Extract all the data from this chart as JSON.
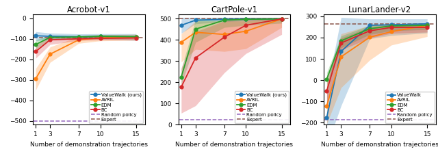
{
  "x": [
    1,
    3,
    7,
    10,
    15
  ],
  "acrobot": {
    "title": "Acrobot-v1",
    "ylim": [
      -520,
      20
    ],
    "valuewalk_mean": [
      -85,
      -88,
      -90,
      -88,
      -90
    ],
    "valuewalk_low": [
      -110,
      -102,
      -102,
      -102,
      -108
    ],
    "valuewalk_high": [
      -65,
      -72,
      -76,
      -75,
      -75
    ],
    "avril_mean": [
      -295,
      -175,
      -105,
      -95,
      -92
    ],
    "avril_low": [
      -350,
      -215,
      -122,
      -110,
      -107
    ],
    "avril_high": [
      -245,
      -140,
      -88,
      -80,
      -78
    ],
    "edm_mean": [
      -128,
      -93,
      -91,
      -88,
      -90
    ],
    "edm_low": [
      -152,
      -103,
      -96,
      -93,
      -96
    ],
    "edm_high": [
      -105,
      -82,
      -83,
      -80,
      -81
    ],
    "bc_mean": [
      -162,
      -105,
      -100,
      -98,
      -96
    ],
    "bc_low": [
      -195,
      -128,
      -108,
      -106,
      -106
    ],
    "bc_high": [
      -132,
      -85,
      -90,
      -88,
      -86
    ],
    "random_policy": -500,
    "expert": -95
  },
  "cartpole": {
    "title": "CartPole-v1",
    "ylim": [
      0,
      520
    ],
    "valuewalk_mean": [
      468,
      492,
      496,
      498,
      498
    ],
    "valuewalk_low": [
      430,
      475,
      485,
      490,
      492
    ],
    "valuewalk_high": [
      505,
      505,
      505,
      505,
      505
    ],
    "avril_mean": [
      388,
      435,
      425,
      440,
      498
    ],
    "avril_low": [
      295,
      355,
      345,
      358,
      458
    ],
    "avril_high": [
      428,
      488,
      488,
      488,
      505
    ],
    "edm_mean": [
      225,
      450,
      492,
      496,
      498
    ],
    "edm_low": [
      188,
      388,
      458,
      468,
      478
    ],
    "edm_high": [
      262,
      496,
      505,
      505,
      505
    ],
    "bc_mean": [
      178,
      315,
      412,
      468,
      498
    ],
    "bc_low": [
      55,
      90,
      245,
      335,
      425
    ],
    "bc_high": [
      268,
      438,
      488,
      505,
      505
    ],
    "random_policy": 25,
    "expert": 500
  },
  "lunarlander": {
    "title": "LunarLander-v2",
    "ylim": [
      -210,
      310
    ],
    "valuewalk_mean": [
      -175,
      135,
      258,
      260,
      265
    ],
    "valuewalk_low": [
      -310,
      -120,
      195,
      210,
      222
    ],
    "valuewalk_high": [
      -50,
      295,
      288,
      288,
      288
    ],
    "avril_mean": [
      -120,
      110,
      202,
      228,
      258
    ],
    "avril_low": [
      -205,
      -35,
      95,
      165,
      205
    ],
    "avril_high": [
      -28,
      218,
      258,
      263,
      268
    ],
    "edm_mean": [
      5,
      185,
      242,
      255,
      258
    ],
    "edm_low": [
      -28,
      152,
      215,
      232,
      238
    ],
    "edm_high": [
      36,
      208,
      258,
      265,
      268
    ],
    "bc_mean": [
      -50,
      175,
      232,
      248,
      248
    ],
    "bc_low": [
      -118,
      142,
      198,
      220,
      226
    ],
    "bc_high": [
      18,
      198,
      250,
      260,
      263
    ],
    "random_policy": -185,
    "expert": 265
  },
  "colors": {
    "valuewalk": "#1f77b4",
    "avril": "#ff7f0e",
    "edm": "#2ca02c",
    "bc": "#d62728",
    "random": "#9467bd",
    "expert": "#8c564b"
  },
  "legend_panels_12": [
    "acrobot",
    "cartpole"
  ],
  "legend_panels_3": [
    "lunarlander"
  ],
  "xlabel": "Number of demonstration trajectories"
}
